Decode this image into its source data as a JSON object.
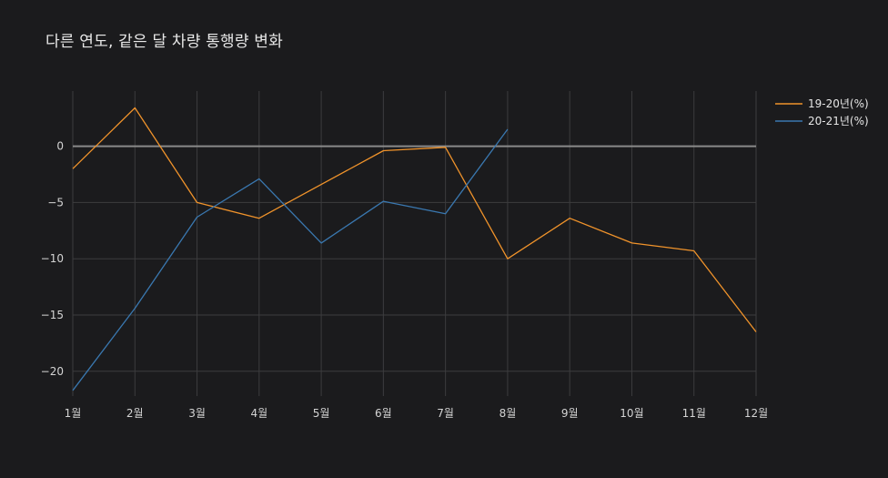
{
  "chart_data": {
    "type": "line",
    "title": "다른 연도, 같은 달 차량 통행량 변화",
    "xlabel": "",
    "ylabel": "",
    "categories": [
      "1월",
      "2월",
      "3월",
      "4월",
      "5월",
      "6월",
      "7월",
      "8월",
      "9월",
      "10월",
      "11월",
      "12월"
    ],
    "ylim": [
      -22.2,
      4.9
    ],
    "yticks": [
      0,
      -5,
      -10,
      -15,
      -20
    ],
    "ytick_labels": [
      "0",
      "−5",
      "−10",
      "−15",
      "−20"
    ],
    "grid": true,
    "legend_position": "top-right",
    "series": [
      {
        "name": "19-20년(%)",
        "color": "#f0932b",
        "values": [
          -2.0,
          3.4,
          -5.0,
          -6.4,
          -3.4,
          -0.4,
          -0.1,
          -10.0,
          -6.4,
          -8.6,
          -9.3,
          -16.5
        ]
      },
      {
        "name": "20-21년(%)",
        "color": "#3a78b0",
        "values": [
          -21.7,
          -14.4,
          -6.3,
          -2.9,
          -8.6,
          -4.9,
          -6.0,
          1.5,
          null,
          null,
          null,
          null
        ]
      }
    ]
  }
}
